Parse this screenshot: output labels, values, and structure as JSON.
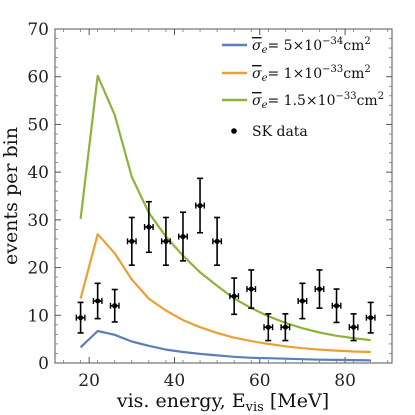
{
  "chart_data": {
    "type": "line",
    "title": "",
    "xlabel": "vis. energy, E",
    "xlabel_sub": "vis",
    "xlabel_unit": "[MeV]",
    "ylabel": "events per bin",
    "xlim": [
      12,
      91
    ],
    "ylim": [
      0,
      70
    ],
    "xticks": [
      20,
      40,
      60,
      80
    ],
    "yticks": [
      0,
      10,
      20,
      30,
      40,
      50,
      60,
      70
    ],
    "grid": false,
    "legend_position": "top-right",
    "series": [
      {
        "name": "σ̄e= 5×10⁻³⁴cm²",
        "legend_main": "σ",
        "legend_sub": "e",
        "legend_eq": "= 5×10",
        "legend_exp": "−34",
        "legend_unit": "cm",
        "legend_unit_exp": "2",
        "color": "#5a7fba",
        "x": [
          18,
          22,
          26,
          30,
          34,
          38,
          42,
          46,
          50,
          54,
          58,
          62,
          66,
          70,
          74,
          78,
          82,
          86
        ],
        "values": [
          3.3,
          6.7,
          5.9,
          4.5,
          3.6,
          2.8,
          2.3,
          1.9,
          1.6,
          1.3,
          1.1,
          1.0,
          0.9,
          0.8,
          0.7,
          0.65,
          0.6,
          0.55
        ]
      },
      {
        "name": "σ̄e= 1×10⁻³³cm²",
        "legend_main": "σ",
        "legend_sub": "e",
        "legend_eq": "= 1×10",
        "legend_exp": "−33",
        "legend_unit": "cm",
        "legend_unit_exp": "2",
        "color": "#e8a234",
        "x": [
          18,
          22,
          26,
          30,
          34,
          38,
          42,
          46,
          50,
          54,
          58,
          62,
          66,
          70,
          74,
          78,
          82,
          86
        ],
        "values": [
          13.5,
          27,
          23,
          17.5,
          13.5,
          11,
          9,
          7.5,
          6.3,
          5.3,
          4.6,
          4.0,
          3.5,
          3.1,
          2.8,
          2.6,
          2.4,
          2.3
        ]
      },
      {
        "name": "σ̄e= 1.5×10⁻³³cm²",
        "legend_main": "σ",
        "legend_sub": "e",
        "legend_eq": "= 1.5×10",
        "legend_exp": "−33",
        "legend_unit": "cm",
        "legend_unit_exp": "2",
        "color": "#8db33a",
        "x": [
          18,
          22,
          26,
          30,
          34,
          38,
          42,
          46,
          50,
          54,
          58,
          62,
          66,
          70,
          74,
          78,
          82,
          86
        ],
        "values": [
          30.2,
          60.2,
          52,
          39,
          31.5,
          26.5,
          22.5,
          19,
          16.2,
          13.5,
          11.5,
          9.8,
          8.4,
          7.3,
          6.4,
          5.7,
          5.2,
          4.8
        ]
      }
    ],
    "data_points": {
      "name": "SK data",
      "color": "#000000",
      "points": [
        {
          "x": 18,
          "y": 9.5,
          "yerr": 3.2,
          "xerr": 1
        },
        {
          "x": 22,
          "y": 13,
          "yerr": 3.7,
          "xerr": 1
        },
        {
          "x": 26,
          "y": 12,
          "yerr": 3.4,
          "xerr": 1
        },
        {
          "x": 30,
          "y": 25.5,
          "yerr": 5.0,
          "xerr": 1
        },
        {
          "x": 34,
          "y": 28.5,
          "yerr": 5.3,
          "xerr": 1
        },
        {
          "x": 38,
          "y": 25.5,
          "yerr": 5.0,
          "xerr": 1
        },
        {
          "x": 42,
          "y": 26.5,
          "yerr": 5.1,
          "xerr": 1
        },
        {
          "x": 46,
          "y": 33,
          "yerr": 5.7,
          "xerr": 1
        },
        {
          "x": 50,
          "y": 25.5,
          "yerr": 5.0,
          "xerr": 1
        },
        {
          "x": 54,
          "y": 14,
          "yerr": 3.8,
          "xerr": 1
        },
        {
          "x": 58,
          "y": 15.5,
          "yerr": 4.0,
          "xerr": 1
        },
        {
          "x": 62,
          "y": 7.5,
          "yerr": 2.8,
          "xerr": 1
        },
        {
          "x": 66,
          "y": 7.5,
          "yerr": 2.8,
          "xerr": 1
        },
        {
          "x": 70,
          "y": 13,
          "yerr": 3.7,
          "xerr": 1
        },
        {
          "x": 74,
          "y": 15.5,
          "yerr": 4.0,
          "xerr": 1
        },
        {
          "x": 78,
          "y": 12,
          "yerr": 3.5,
          "xerr": 1
        },
        {
          "x": 82,
          "y": 7.5,
          "yerr": 2.8,
          "xerr": 1
        },
        {
          "x": 86,
          "y": 9.5,
          "yerr": 3.2,
          "xerr": 1
        }
      ]
    }
  }
}
